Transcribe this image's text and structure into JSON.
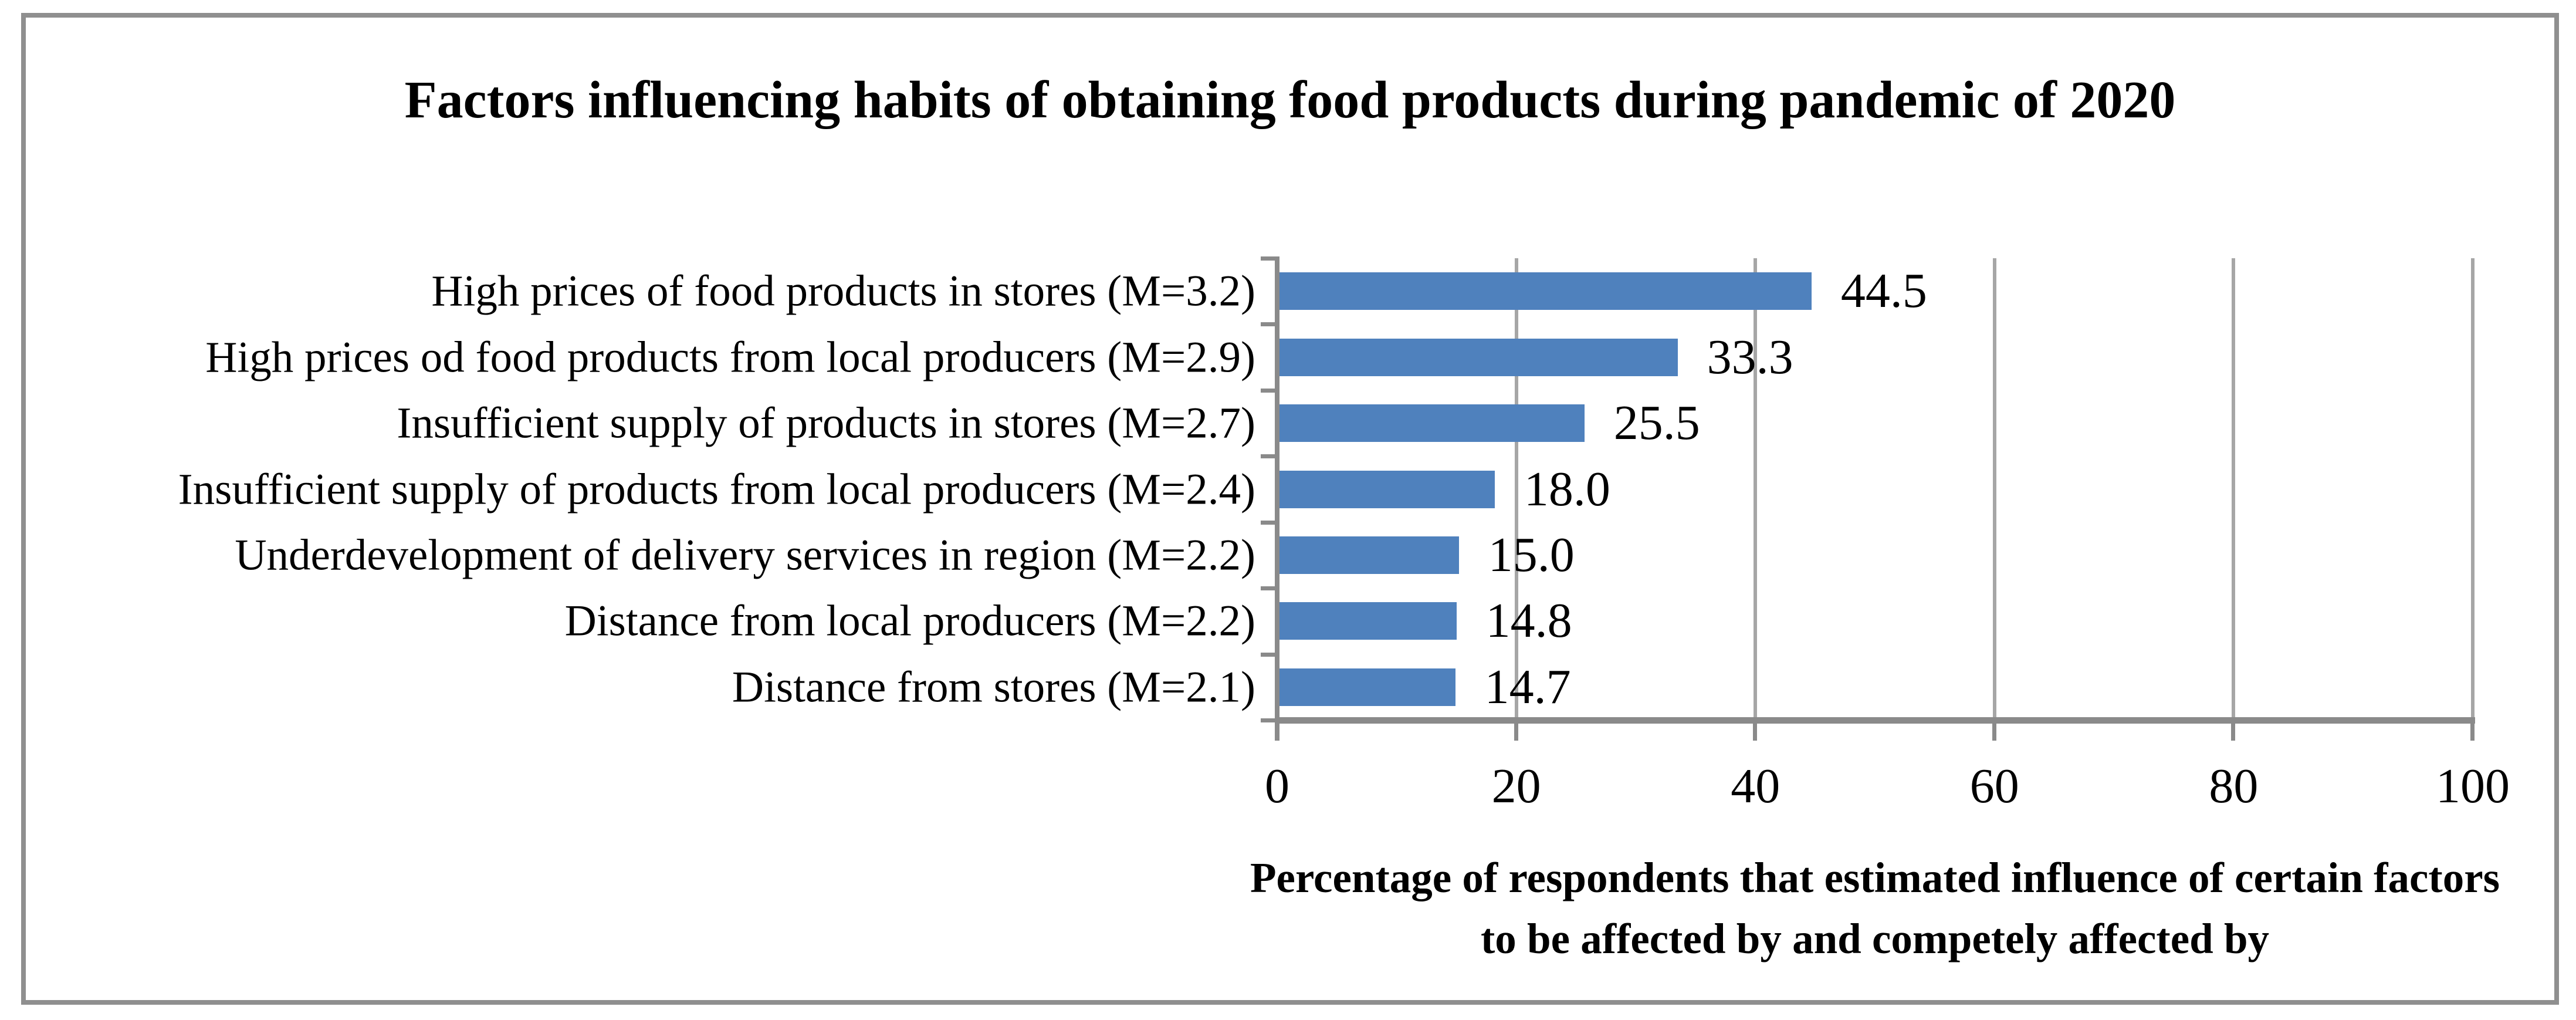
{
  "chart_data": {
    "type": "bar",
    "orientation": "horizontal",
    "title": "Factors influencing habits of obtaining food products during pandemic of 2020",
    "categories": [
      "High prices of food products in stores (M=3.2)",
      "High prices od food products from local producers (M=2.9)",
      "Insufficient supply of products in stores (M=2.7)",
      "Insufficient supply of products from local producers (M=2.4)",
      "Underdevelopment of delivery services in region (M=2.2)",
      "Distance from local producers (M=2.2)",
      "Distance from stores (M=2.1)"
    ],
    "values": [
      44.5,
      33.3,
      25.5,
      18.0,
      15.0,
      14.8,
      14.7
    ],
    "value_labels": [
      "44.5",
      "33.3",
      "25.5",
      "18.0",
      "15.0",
      "14.8",
      "14.7"
    ],
    "xticks": [
      0,
      20,
      40,
      60,
      80,
      100
    ],
    "xtick_labels": [
      "0",
      "20",
      "40",
      "60",
      "80",
      "100"
    ],
    "xlim": [
      0,
      100
    ],
    "xlabel_lines": [
      "Percentage of respondents that estimated influence of certain factors",
      "to be affected by and competely affected by"
    ],
    "grid": true,
    "legend": "none",
    "colors": {
      "bar": "#4f81bd",
      "gridline": "#a6a6a6",
      "axis": "#8a8a8a",
      "figure_border": "#8f8f8f",
      "text": "#000000"
    }
  }
}
